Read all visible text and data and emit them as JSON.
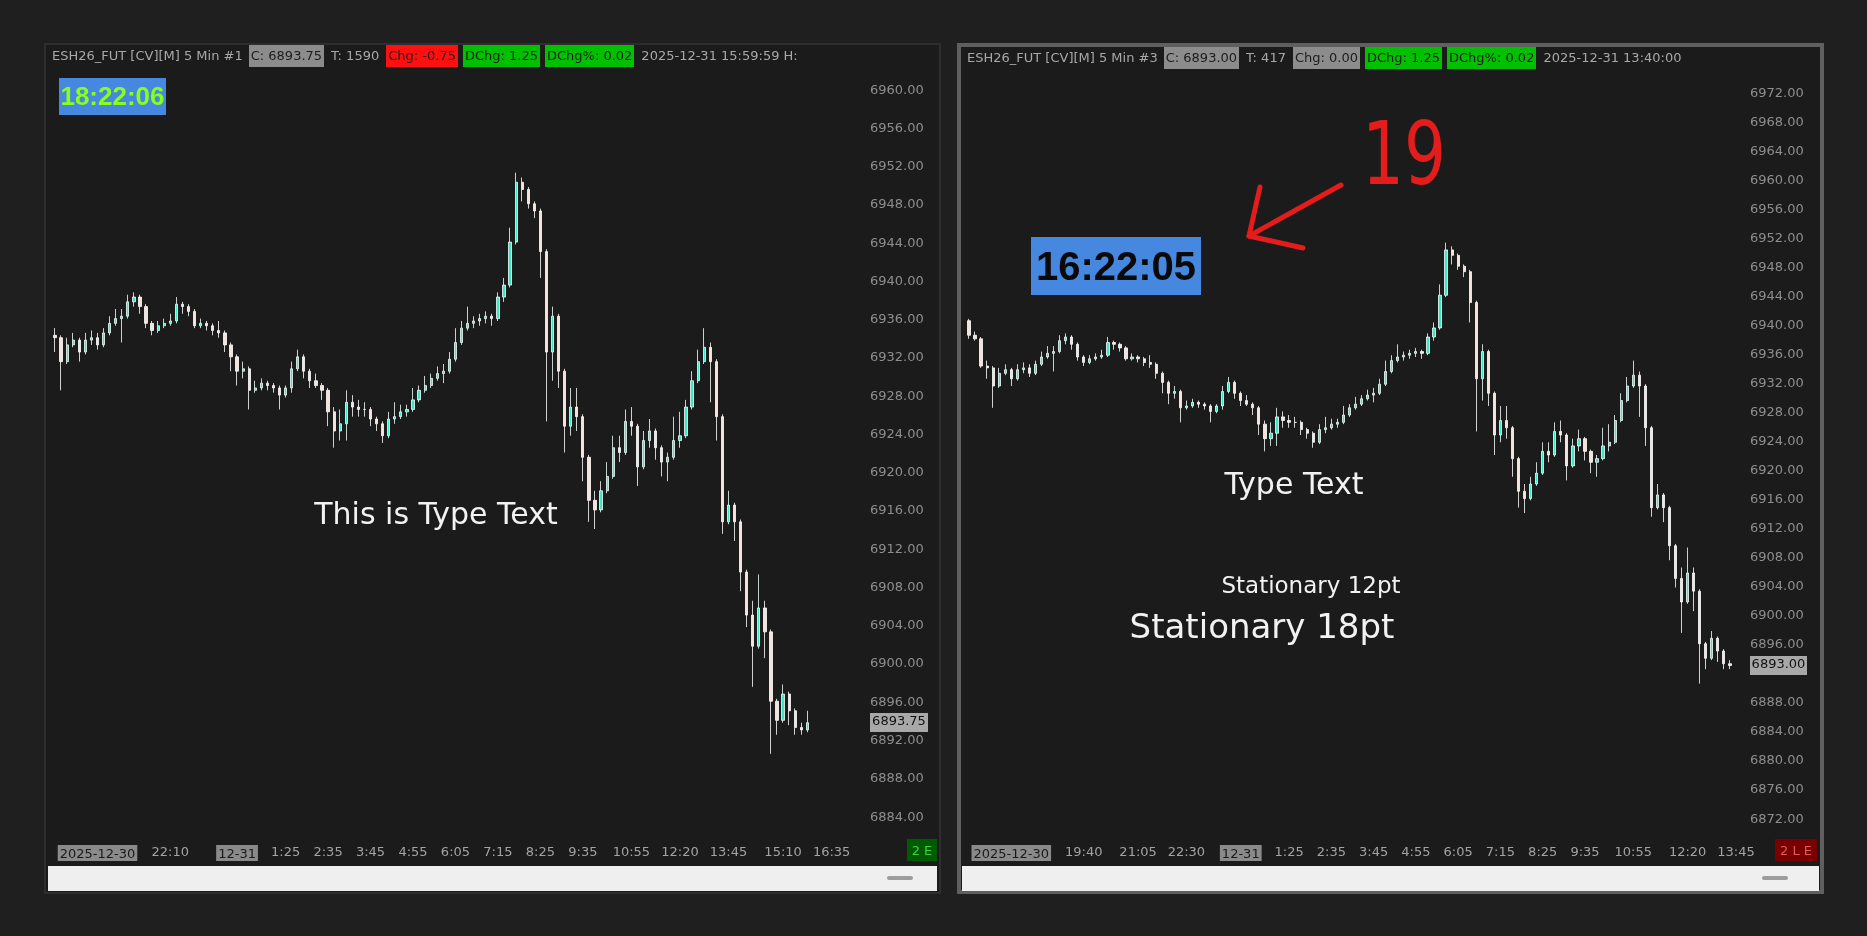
{
  "chart_data": [
    {
      "type": "candlestick",
      "title": "ESH26_FUT [CV][M] 5 Min #1",
      "categories": [
        null,
        null,
        null,
        null,
        null,
        null,
        null,
        "2025-12-30",
        null,
        null,
        null,
        null,
        null,
        null,
        null,
        null,
        null,
        null,
        null,
        "22:10",
        null,
        null,
        null,
        null,
        null,
        null,
        null,
        null,
        null,
        null,
        "12-31",
        null,
        null,
        null,
        null,
        null,
        null,
        null,
        "1:25",
        null,
        null,
        null,
        null,
        null,
        null,
        "2:35",
        null,
        null,
        null,
        null,
        null,
        null,
        "3:45",
        null,
        null,
        null,
        null,
        null,
        null,
        "4:55",
        null,
        null,
        null,
        null,
        null,
        null,
        "6:05",
        null,
        null,
        null,
        null,
        null,
        null,
        "7:15",
        null,
        null,
        null,
        null,
        null,
        null,
        "8:25",
        null,
        null,
        null,
        null,
        null,
        null,
        "9:35",
        null,
        null,
        null,
        null,
        null,
        null,
        null,
        "10:55",
        null,
        null,
        null,
        null,
        null,
        null,
        null,
        "12:20",
        null,
        null,
        null,
        null,
        null,
        null,
        null,
        "13:45",
        null,
        null,
        null,
        null,
        null,
        null,
        null,
        null,
        "15:10",
        null,
        null,
        null,
        null,
        null,
        null,
        null,
        "16:35",
        null,
        null,
        null,
        null,
        null
      ],
      "ohlc": [
        [
          6934.25,
          6935.0,
          6932.5,
          6934.0
        ],
        [
          6934.0,
          6934.25,
          6928.5,
          6931.5
        ],
        [
          6931.5,
          6934.0,
          6931.25,
          6933.25
        ],
        [
          6933.25,
          6934.5,
          6933.0,
          6933.75
        ],
        [
          6933.75,
          6934.0,
          6931.5,
          6932.5
        ],
        [
          6932.5,
          6934.5,
          6932.25,
          6933.75
        ],
        [
          6933.75,
          6934.75,
          6933.25,
          6934.0
        ],
        [
          6934.0,
          6934.5,
          6932.75,
          6933.25
        ],
        [
          6933.25,
          6935.0,
          6933.0,
          6934.5
        ],
        [
          6934.5,
          6936.25,
          6934.25,
          6935.5
        ],
        [
          6935.5,
          6937.0,
          6935.25,
          6936.0
        ],
        [
          6936.0,
          6937.0,
          6933.5,
          6936.25
        ],
        [
          6936.25,
          6938.5,
          6936.0,
          6937.75
        ],
        [
          6937.75,
          6938.75,
          6937.25,
          6938.25
        ],
        [
          6938.25,
          6938.5,
          6936.5,
          6937.25
        ],
        [
          6937.25,
          6937.5,
          6935.0,
          6935.5
        ],
        [
          6935.5,
          6935.75,
          6934.25,
          6934.75
        ],
        [
          6934.75,
          6935.75,
          6934.5,
          6935.25
        ],
        [
          6935.25,
          6936.0,
          6935.0,
          6935.5
        ],
        [
          6935.5,
          6936.5,
          6935.25,
          6935.75
        ],
        [
          6935.75,
          6938.25,
          6935.5,
          6937.5
        ],
        [
          6937.5,
          6937.75,
          6936.5,
          6937.25
        ],
        [
          6937.25,
          6937.5,
          6936.25,
          6936.75
        ],
        [
          6936.75,
          6937.0,
          6935.0,
          6935.25
        ],
        [
          6935.25,
          6936.0,
          6935.0,
          6935.5
        ],
        [
          6935.5,
          6935.75,
          6934.75,
          6935.25
        ],
        [
          6935.25,
          6935.5,
          6934.25,
          6934.75
        ],
        [
          6934.75,
          6935.75,
          6934.0,
          6934.5
        ],
        [
          6934.5,
          6934.75,
          6932.5,
          6933.25
        ],
        [
          6933.25,
          6933.5,
          6930.5,
          6932.0
        ],
        [
          6932.0,
          6932.25,
          6929.0,
          6930.5
        ],
        [
          6930.5,
          6931.5,
          6929.75,
          6930.75
        ],
        [
          6930.75,
          6931.0,
          6926.5,
          6928.5
        ],
        [
          6928.5,
          6929.5,
          6928.25,
          6928.75
        ],
        [
          6928.75,
          6929.75,
          6928.5,
          6929.25
        ],
        [
          6929.25,
          6929.5,
          6928.5,
          6929.0
        ],
        [
          6929.0,
          6929.25,
          6928.25,
          6928.75
        ],
        [
          6928.75,
          6929.0,
          6926.5,
          6928.0
        ],
        [
          6928.0,
          6929.0,
          6927.75,
          6928.75
        ],
        [
          6928.75,
          6931.5,
          6928.25,
          6930.75
        ],
        [
          6930.75,
          6932.75,
          6930.5,
          6932.0
        ],
        [
          6932.0,
          6932.25,
          6929.75,
          6930.5
        ],
        [
          6930.5,
          6930.75,
          6928.75,
          6929.5
        ],
        [
          6929.5,
          6930.25,
          6928.75,
          6929.0
        ],
        [
          6929.0,
          6929.25,
          6927.5,
          6928.5
        ],
        [
          6928.5,
          6928.75,
          6924.75,
          6926.25
        ],
        [
          6926.25,
          6926.75,
          6922.5,
          6924.25
        ],
        [
          6924.25,
          6926.5,
          6923.25,
          6925.0
        ],
        [
          6925.0,
          6928.5,
          6923.25,
          6927.25
        ],
        [
          6927.25,
          6928.0,
          6925.75,
          6926.75
        ],
        [
          6926.75,
          6927.5,
          6925.75,
          6926.5
        ],
        [
          6926.5,
          6927.25,
          6925.75,
          6926.5
        ],
        [
          6926.5,
          6926.75,
          6924.75,
          6925.5
        ],
        [
          6925.5,
          6925.75,
          6924.25,
          6925.0
        ],
        [
          6925.0,
          6925.25,
          6923.0,
          6923.75
        ],
        [
          6923.75,
          6926.25,
          6923.5,
          6925.5
        ],
        [
          6925.5,
          6927.25,
          6925.0,
          6925.75
        ],
        [
          6925.75,
          6927.0,
          6925.5,
          6926.25
        ],
        [
          6926.25,
          6927.0,
          6925.75,
          6926.5
        ],
        [
          6926.5,
          6928.75,
          6926.25,
          6927.5
        ],
        [
          6927.5,
          6929.0,
          6927.25,
          6928.5
        ],
        [
          6928.5,
          6930.0,
          6928.25,
          6929.0
        ],
        [
          6929.0,
          6930.25,
          6928.75,
          6929.75
        ],
        [
          6929.75,
          6931.0,
          6929.5,
          6930.25
        ],
        [
          6930.25,
          6931.25,
          6929.25,
          6930.5
        ],
        [
          6930.5,
          6932.5,
          6930.25,
          6931.75
        ],
        [
          6931.75,
          6935.0,
          6931.5,
          6933.5
        ],
        [
          6933.5,
          6935.75,
          6933.25,
          6935.0
        ],
        [
          6935.0,
          6937.25,
          6934.75,
          6935.5
        ],
        [
          6935.5,
          6936.25,
          6935.0,
          6935.75
        ],
        [
          6935.75,
          6936.5,
          6935.25,
          6936.0
        ],
        [
          6936.0,
          6936.75,
          6935.5,
          6936.25
        ],
        [
          6936.25,
          6936.5,
          6935.25,
          6936.0
        ],
        [
          6936.0,
          6938.75,
          6935.75,
          6938.25
        ],
        [
          6938.25,
          6940.25,
          6937.75,
          6939.5
        ],
        [
          6939.5,
          6945.5,
          6939.25,
          6944.0
        ],
        [
          6944.0,
          6951.25,
          6943.75,
          6950.25
        ],
        [
          6950.25,
          6950.75,
          6948.25,
          6949.5
        ],
        [
          6949.5,
          6949.75,
          6947.5,
          6948.0
        ],
        [
          6948.0,
          6948.25,
          6946.5,
          6947.25
        ],
        [
          6947.25,
          6947.5,
          6940.25,
          6943.0
        ],
        [
          6943.0,
          6943.25,
          6925.25,
          6932.5
        ],
        [
          6932.5,
          6937.25,
          6929.5,
          6936.25
        ],
        [
          6936.25,
          6936.5,
          6928.75,
          6930.5
        ],
        [
          6930.5,
          6930.75,
          6922.0,
          6924.75
        ],
        [
          6924.75,
          6928.75,
          6923.75,
          6926.75
        ],
        [
          6926.75,
          6928.75,
          6924.25,
          6925.75
        ],
        [
          6925.75,
          6926.0,
          6919.0,
          6921.5
        ],
        [
          6921.5,
          6921.75,
          6914.75,
          6917.0
        ],
        [
          6917.0,
          6918.0,
          6914.0,
          6916.0
        ],
        [
          6916.0,
          6919.0,
          6915.75,
          6918.0
        ],
        [
          6918.0,
          6921.0,
          6917.75,
          6919.5
        ],
        [
          6919.5,
          6923.75,
          6919.25,
          6922.5
        ],
        [
          6922.5,
          6923.75,
          6921.0,
          6922.0
        ],
        [
          6922.0,
          6926.5,
          6921.75,
          6925.25
        ],
        [
          6925.25,
          6926.75,
          6923.75,
          6924.75
        ],
        [
          6924.75,
          6925.0,
          6918.5,
          6920.5
        ],
        [
          6920.5,
          6924.25,
          6920.25,
          6923.25
        ],
        [
          6923.25,
          6925.5,
          6922.5,
          6924.25
        ],
        [
          6924.25,
          6924.5,
          6921.25,
          6922.5
        ],
        [
          6922.5,
          6922.75,
          6919.5,
          6921.0
        ],
        [
          6921.0,
          6922.0,
          6919.0,
          6921.5
        ],
        [
          6921.5,
          6925.75,
          6921.25,
          6923.25
        ],
        [
          6923.25,
          6926.25,
          6922.5,
          6923.75
        ],
        [
          6923.75,
          6927.5,
          6923.5,
          6926.75
        ],
        [
          6926.75,
          6930.5,
          6926.5,
          6929.5
        ],
        [
          6929.5,
          6932.75,
          6929.25,
          6931.5
        ],
        [
          6931.5,
          6935.0,
          6931.25,
          6933.0
        ],
        [
          6933.0,
          6933.5,
          6927.25,
          6931.5
        ],
        [
          6931.5,
          6931.75,
          6923.25,
          6925.75
        ],
        [
          6925.75,
          6926.0,
          6913.5,
          6914.75
        ],
        [
          6914.75,
          6918.0,
          6914.5,
          6916.5
        ],
        [
          6916.5,
          6916.75,
          6912.75,
          6914.75
        ],
        [
          6914.75,
          6915.0,
          6907.5,
          6909.5
        ],
        [
          6909.5,
          6909.75,
          6903.75,
          6905.0
        ],
        [
          6905.0,
          6906.5,
          6897.5,
          6901.75
        ],
        [
          6901.75,
          6909.25,
          6901.5,
          6905.75
        ],
        [
          6905.75,
          6906.5,
          6900.5,
          6903.25
        ],
        [
          6903.25,
          6903.5,
          6890.5,
          6896.0
        ],
        [
          6896.0,
          6896.25,
          6892.5,
          6894.0
        ],
        [
          6894.0,
          6897.75,
          6893.75,
          6896.75
        ],
        [
          6896.75,
          6897.0,
          6893.5,
          6895.0
        ],
        [
          6895.0,
          6895.25,
          6892.5,
          6893.25
        ],
        [
          6893.25,
          6893.75,
          6892.5,
          6893.0
        ],
        [
          6893.0,
          6895.0,
          6892.75,
          6893.75
        ],
        null,
        null,
        null,
        null,
        null,
        null,
        null,
        null,
        null
      ],
      "ylim": [
        6884,
        6960
      ],
      "yticks": [
        {
          "value": 6884,
          "label": "6884.00"
        },
        {
          "value": 6888,
          "label": "6888.00"
        },
        {
          "value": 6892,
          "label": "6892.00"
        },
        {
          "value": 6896,
          "label": "6896.00"
        },
        {
          "value": 6900,
          "label": "6900.00"
        },
        {
          "value": 6904,
          "label": "6904.00"
        },
        {
          "value": 6908,
          "label": "6908.00"
        },
        {
          "value": 6912,
          "label": "6912.00"
        },
        {
          "value": 6916,
          "label": "6916.00"
        },
        {
          "value": 6920,
          "label": "6920.00"
        },
        {
          "value": 6924,
          "label": "6924.00"
        },
        {
          "value": 6928,
          "label": "6928.00"
        },
        {
          "value": 6932,
          "label": "6932.00"
        },
        {
          "value": 6936,
          "label": "6936.00"
        },
        {
          "value": 6940,
          "label": "6940.00"
        },
        {
          "value": 6944,
          "label": "6944.00"
        },
        {
          "value": 6948,
          "label": "6948.00"
        },
        {
          "value": 6952,
          "label": "6952.00"
        },
        {
          "value": 6956,
          "label": "6956.00"
        },
        {
          "value": 6960,
          "label": "6960.00"
        }
      ],
      "annotations": [
        "C: 6893.75",
        "T: 1590",
        "Chg: -0.75",
        "DChg: 1.25",
        "DChg%: 0.02",
        "2025-12-31 15:59:59 H:",
        "18:22:06",
        "This is Type Text",
        "6893.75",
        "2 E"
      ]
    },
    {
      "type": "candlestick",
      "title": "ESH26_FUT [CV][M] 5 Min #3",
      "categories": [
        null,
        null,
        null,
        null,
        null,
        null,
        null,
        "2025-12-30",
        null,
        null,
        null,
        null,
        null,
        null,
        null,
        null,
        null,
        null,
        null,
        "19:40",
        null,
        null,
        null,
        null,
        null,
        null,
        null,
        null,
        "21:05",
        null,
        null,
        null,
        null,
        null,
        null,
        null,
        "22:30",
        null,
        null,
        null,
        null,
        null,
        null,
        null,
        null,
        "12-31",
        null,
        null,
        null,
        null,
        null,
        null,
        null,
        "1:25",
        null,
        null,
        null,
        null,
        null,
        null,
        "2:35",
        null,
        null,
        null,
        null,
        null,
        null,
        "3:45",
        null,
        null,
        null,
        null,
        null,
        null,
        "4:55",
        null,
        null,
        null,
        null,
        null,
        null,
        "6:05",
        null,
        null,
        null,
        null,
        null,
        null,
        "7:15",
        null,
        null,
        null,
        null,
        null,
        null,
        "8:25",
        null,
        null,
        null,
        null,
        null,
        null,
        "9:35",
        null,
        null,
        null,
        null,
        null,
        null,
        null,
        "10:55",
        null,
        null,
        null,
        null,
        null,
        null,
        null,
        null,
        "12:20",
        null,
        null,
        null,
        null,
        null,
        null,
        null,
        "13:45",
        null
      ],
      "ohlc": [
        [
          6940.5,
          6940.75,
          6938.0,
          6938.5
        ],
        [
          6938.5,
          6939.0,
          6937.75,
          6938.0
        ],
        [
          6938.0,
          6938.25,
          6934.0,
          6934.25
        ],
        [
          6934.25,
          6935.0,
          6932.5,
          6934.0
        ],
        [
          6934.0,
          6934.25,
          6928.5,
          6931.5
        ],
        [
          6931.5,
          6934.0,
          6931.25,
          6933.25
        ],
        [
          6933.25,
          6934.5,
          6933.0,
          6933.75
        ],
        [
          6933.75,
          6934.0,
          6931.5,
          6932.5
        ],
        [
          6932.5,
          6934.5,
          6932.25,
          6933.75
        ],
        [
          6933.75,
          6934.75,
          6933.25,
          6934.0
        ],
        [
          6934.0,
          6934.5,
          6932.75,
          6933.25
        ],
        [
          6933.25,
          6935.0,
          6933.0,
          6934.5
        ],
        [
          6934.5,
          6936.25,
          6934.25,
          6935.5
        ],
        [
          6935.5,
          6937.0,
          6935.25,
          6936.0
        ],
        [
          6936.0,
          6937.0,
          6933.5,
          6936.25
        ],
        [
          6936.25,
          6938.5,
          6936.0,
          6937.75
        ],
        [
          6937.75,
          6938.75,
          6937.25,
          6938.25
        ],
        [
          6938.25,
          6938.5,
          6936.5,
          6937.25
        ],
        [
          6937.25,
          6937.5,
          6935.0,
          6935.5
        ],
        [
          6935.5,
          6935.75,
          6934.25,
          6934.75
        ],
        [
          6934.75,
          6935.75,
          6934.5,
          6935.25
        ],
        [
          6935.25,
          6936.0,
          6935.0,
          6935.5
        ],
        [
          6935.5,
          6936.5,
          6935.25,
          6935.75
        ],
        [
          6935.75,
          6938.25,
          6935.5,
          6937.5
        ],
        [
          6937.5,
          6937.75,
          6936.5,
          6937.25
        ],
        [
          6937.25,
          6937.5,
          6936.25,
          6936.75
        ],
        [
          6936.75,
          6937.0,
          6935.0,
          6935.25
        ],
        [
          6935.25,
          6936.0,
          6935.0,
          6935.5
        ],
        [
          6935.5,
          6935.75,
          6934.75,
          6935.25
        ],
        [
          6935.25,
          6935.5,
          6934.25,
          6934.75
        ],
        [
          6934.75,
          6935.75,
          6934.0,
          6934.5
        ],
        [
          6934.5,
          6934.75,
          6932.5,
          6933.25
        ],
        [
          6933.25,
          6933.5,
          6930.5,
          6932.0
        ],
        [
          6932.0,
          6932.25,
          6929.0,
          6930.5
        ],
        [
          6930.5,
          6931.5,
          6929.75,
          6930.75
        ],
        [
          6930.75,
          6931.0,
          6926.5,
          6928.5
        ],
        [
          6928.5,
          6929.5,
          6928.25,
          6928.75
        ],
        [
          6928.75,
          6929.75,
          6928.5,
          6929.25
        ],
        [
          6929.25,
          6929.5,
          6928.5,
          6929.0
        ],
        [
          6929.0,
          6929.25,
          6928.25,
          6928.75
        ],
        [
          6928.75,
          6929.0,
          6926.5,
          6928.0
        ],
        [
          6928.0,
          6929.0,
          6927.75,
          6928.75
        ],
        [
          6928.75,
          6931.5,
          6928.25,
          6930.75
        ],
        [
          6930.75,
          6932.75,
          6930.5,
          6932.0
        ],
        [
          6932.0,
          6932.25,
          6929.75,
          6930.5
        ],
        [
          6930.5,
          6930.75,
          6928.75,
          6929.5
        ],
        [
          6929.5,
          6930.25,
          6928.75,
          6929.0
        ],
        [
          6929.0,
          6929.25,
          6927.5,
          6928.5
        ],
        [
          6928.5,
          6928.75,
          6924.75,
          6926.25
        ],
        [
          6926.25,
          6926.75,
          6922.5,
          6924.25
        ],
        [
          6924.25,
          6926.5,
          6923.25,
          6925.0
        ],
        [
          6925.0,
          6928.5,
          6923.25,
          6927.25
        ],
        [
          6927.25,
          6928.0,
          6925.75,
          6926.75
        ],
        [
          6926.75,
          6927.5,
          6925.75,
          6926.5
        ],
        [
          6926.5,
          6927.25,
          6925.75,
          6926.5
        ],
        [
          6926.5,
          6926.75,
          6924.75,
          6925.5
        ],
        [
          6925.5,
          6925.75,
          6924.25,
          6925.0
        ],
        [
          6925.0,
          6925.25,
          6923.0,
          6923.75
        ],
        [
          6923.75,
          6926.25,
          6923.5,
          6925.5
        ],
        [
          6925.5,
          6927.25,
          6925.0,
          6925.75
        ],
        [
          6925.75,
          6927.0,
          6925.5,
          6926.25
        ],
        [
          6926.25,
          6927.0,
          6925.75,
          6926.5
        ],
        [
          6926.5,
          6928.75,
          6926.25,
          6927.5
        ],
        [
          6927.5,
          6929.0,
          6927.25,
          6928.5
        ],
        [
          6928.5,
          6930.0,
          6928.25,
          6929.0
        ],
        [
          6929.0,
          6930.25,
          6928.75,
          6929.75
        ],
        [
          6929.75,
          6931.0,
          6929.5,
          6930.25
        ],
        [
          6930.25,
          6931.25,
          6929.25,
          6930.5
        ],
        [
          6930.5,
          6932.5,
          6930.25,
          6931.75
        ],
        [
          6931.75,
          6935.0,
          6931.5,
          6933.5
        ],
        [
          6933.5,
          6935.75,
          6933.25,
          6935.0
        ],
        [
          6935.0,
          6937.25,
          6934.75,
          6935.5
        ],
        [
          6935.5,
          6936.25,
          6935.0,
          6935.75
        ],
        [
          6935.75,
          6936.5,
          6935.25,
          6936.0
        ],
        [
          6936.0,
          6936.75,
          6935.5,
          6936.25
        ],
        [
          6936.25,
          6936.5,
          6935.25,
          6936.0
        ],
        [
          6936.0,
          6938.75,
          6935.75,
          6938.25
        ],
        [
          6938.25,
          6940.25,
          6937.75,
          6939.5
        ],
        [
          6939.5,
          6945.5,
          6939.25,
          6944.0
        ],
        [
          6944.0,
          6951.25,
          6943.75,
          6950.25
        ],
        [
          6950.25,
          6950.75,
          6948.25,
          6949.5
        ],
        [
          6949.5,
          6949.75,
          6947.5,
          6948.0
        ],
        [
          6948.0,
          6948.25,
          6946.5,
          6947.25
        ],
        [
          6947.25,
          6947.5,
          6940.25,
          6943.0
        ],
        [
          6943.0,
          6943.25,
          6925.25,
          6932.5
        ],
        [
          6932.5,
          6937.25,
          6929.5,
          6936.25
        ],
        [
          6936.25,
          6936.5,
          6928.75,
          6930.5
        ],
        [
          6930.5,
          6930.75,
          6922.0,
          6924.75
        ],
        [
          6924.75,
          6928.75,
          6923.75,
          6926.75
        ],
        [
          6926.75,
          6928.75,
          6924.25,
          6925.75
        ],
        [
          6925.75,
          6926.0,
          6919.0,
          6921.5
        ],
        [
          6921.5,
          6921.75,
          6914.75,
          6917.0
        ],
        [
          6917.0,
          6918.0,
          6914.0,
          6916.0
        ],
        [
          6916.0,
          6919.0,
          6915.75,
          6918.0
        ],
        [
          6918.0,
          6921.0,
          6917.75,
          6919.5
        ],
        [
          6919.5,
          6923.75,
          6919.25,
          6922.5
        ],
        [
          6922.5,
          6923.75,
          6921.0,
          6922.0
        ],
        [
          6922.0,
          6926.5,
          6921.75,
          6925.25
        ],
        [
          6925.25,
          6926.75,
          6923.75,
          6924.75
        ],
        [
          6924.75,
          6925.0,
          6918.5,
          6920.5
        ],
        [
          6920.5,
          6924.25,
          6920.25,
          6923.25
        ],
        [
          6923.25,
          6925.5,
          6922.5,
          6924.25
        ],
        [
          6924.25,
          6924.5,
          6921.25,
          6922.5
        ],
        [
          6922.5,
          6922.75,
          6919.5,
          6921.0
        ],
        [
          6921.0,
          6922.0,
          6919.0,
          6921.5
        ],
        [
          6921.5,
          6925.75,
          6921.25,
          6923.25
        ],
        [
          6923.25,
          6926.25,
          6922.5,
          6923.75
        ],
        [
          6923.75,
          6927.5,
          6923.5,
          6926.75
        ],
        [
          6926.75,
          6930.5,
          6926.5,
          6929.5
        ],
        [
          6929.5,
          6932.75,
          6929.25,
          6931.5
        ],
        [
          6931.5,
          6935.0,
          6931.25,
          6933.0
        ],
        [
          6933.0,
          6933.5,
          6927.25,
          6931.5
        ],
        [
          6931.5,
          6931.75,
          6923.25,
          6925.75
        ],
        [
          6925.75,
          6926.0,
          6913.5,
          6914.75
        ],
        [
          6914.75,
          6918.0,
          6914.5,
          6916.5
        ],
        [
          6916.5,
          6916.75,
          6912.75,
          6914.75
        ],
        [
          6914.75,
          6915.0,
          6907.5,
          6909.5
        ],
        [
          6909.5,
          6909.75,
          6903.75,
          6905.0
        ],
        [
          6905.0,
          6906.5,
          6897.5,
          6901.75
        ],
        [
          6901.75,
          6909.25,
          6901.5,
          6905.75
        ],
        [
          6905.75,
          6906.5,
          6900.5,
          6903.25
        ],
        [
          6903.25,
          6903.5,
          6890.5,
          6896.0
        ],
        [
          6896.0,
          6896.25,
          6892.5,
          6894.0
        ],
        [
          6894.0,
          6897.75,
          6893.75,
          6896.75
        ],
        [
          6896.75,
          6897.0,
          6893.5,
          6895.0
        ],
        [
          6895.0,
          6895.25,
          6892.5,
          6893.25
        ],
        [
          6893.25,
          6893.75,
          6892.5,
          6893.0
        ],
        null,
        null
      ],
      "ylim": [
        6872,
        6972
      ],
      "yticks": [
        {
          "value": 6872,
          "label": "6872.00"
        },
        {
          "value": 6876,
          "label": "6876.00"
        },
        {
          "value": 6880,
          "label": "6880.00"
        },
        {
          "value": 6884,
          "label": "6884.00"
        },
        {
          "value": 6888,
          "label": "6888.00"
        },
        {
          "value": 6896,
          "label": "6896.00"
        },
        {
          "value": 6900,
          "label": "6900.00"
        },
        {
          "value": 6904,
          "label": "6904.00"
        },
        {
          "value": 6908,
          "label": "6908.00"
        },
        {
          "value": 6912,
          "label": "6912.00"
        },
        {
          "value": 6916,
          "label": "6916.00"
        },
        {
          "value": 6920,
          "label": "6920.00"
        },
        {
          "value": 6924,
          "label": "6924.00"
        },
        {
          "value": 6928,
          "label": "6928.00"
        },
        {
          "value": 6932,
          "label": "6932.00"
        },
        {
          "value": 6936,
          "label": "6936.00"
        },
        {
          "value": 6940,
          "label": "6940.00"
        },
        {
          "value": 6944,
          "label": "6944.00"
        },
        {
          "value": 6948,
          "label": "6948.00"
        },
        {
          "value": 6952,
          "label": "6952.00"
        },
        {
          "value": 6956,
          "label": "6956.00"
        },
        {
          "value": 6960,
          "label": "6960.00"
        },
        {
          "value": 6964,
          "label": "6964.00"
        },
        {
          "value": 6968,
          "label": "6968.00"
        },
        {
          "value": 6972,
          "label": "6972.00"
        }
      ],
      "annotations": [
        "C: 6893.00",
        "T: 417",
        "Chg: 0.00",
        "DChg: 1.25",
        "DChg%: 0.02",
        "2025-12-31 13:40:00",
        "16:22:05",
        "19",
        "Type Text",
        "Stationary 12pt",
        "Stationary 18pt",
        "6893.00",
        "2 L E"
      ]
    }
  ]
}
